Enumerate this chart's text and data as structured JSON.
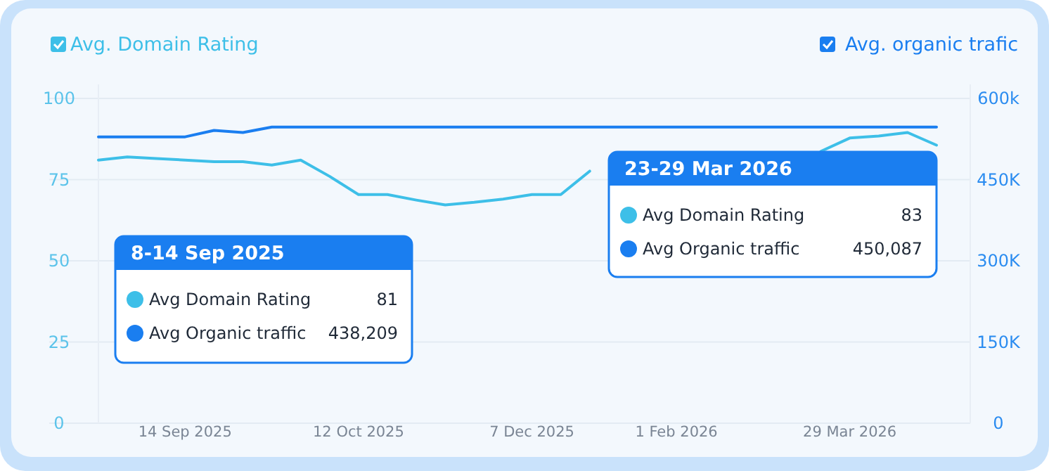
{
  "chart_data": {
    "type": "line",
    "categories": [
      null,
      null,
      null,
      "14 Sep 2025",
      null,
      null,
      null,
      null,
      null,
      "12 Oct 2025",
      null,
      null,
      null,
      null,
      null,
      "7 Dec 2025",
      null,
      null,
      null,
      null,
      "1 Feb 2026",
      null,
      null,
      null,
      null,
      null,
      "29 Mar 2026",
      null,
      null,
      null
    ],
    "series": [
      {
        "name": "Avg. Domain Rating",
        "color": "#3dbfe8",
        "values": [
          81,
          82,
          81.5,
          81,
          80.5,
          80.5,
          79.5,
          81,
          76,
          70.4,
          70.4,
          68.7,
          67.2,
          68,
          69,
          70.4,
          70.4,
          77.6,
          null,
          null,
          null,
          null,
          null,
          null,
          null,
          83.7,
          87.8,
          88.4,
          89.5,
          85.6
        ]
      },
      {
        "name": "Avg. organic trafic",
        "color": "#1a7ef0",
        "axis": "y2",
        "values": [
          529000,
          529000,
          529000,
          529000,
          541000,
          537000,
          547000,
          547000,
          547000,
          547000,
          547000,
          547000,
          547000,
          547000,
          547000,
          547000,
          547000,
          547000,
          547000,
          547000,
          547000,
          547000,
          547000,
          547000,
          547000,
          547000,
          547000,
          547000,
          547000,
          547000
        ]
      }
    ],
    "ylim": [
      0,
      100
    ],
    "yticks": [
      0,
      25,
      50,
      75,
      100
    ],
    "y2lim": [
      0,
      600000
    ],
    "y2ticks": [
      {
        "value": 0,
        "label": "0"
      },
      {
        "value": 150000,
        "label": "150K"
      },
      {
        "value": 300000,
        "label": "300K"
      },
      {
        "value": 450000,
        "label": "450K"
      },
      {
        "value": 600000,
        "label": "600k"
      }
    ],
    "grid": "y",
    "legend": "top",
    "marker": "none",
    "line_style": "solid",
    "annotations": [
      "8-14 Sep 2025",
      "Avg Domain Rating",
      "81",
      "Avg Organic traffic",
      "438,209",
      "23-29 Mar 2026",
      "Avg Domain Rating",
      "83",
      "Avg Organic traffic",
      "450,087"
    ]
  }
}
